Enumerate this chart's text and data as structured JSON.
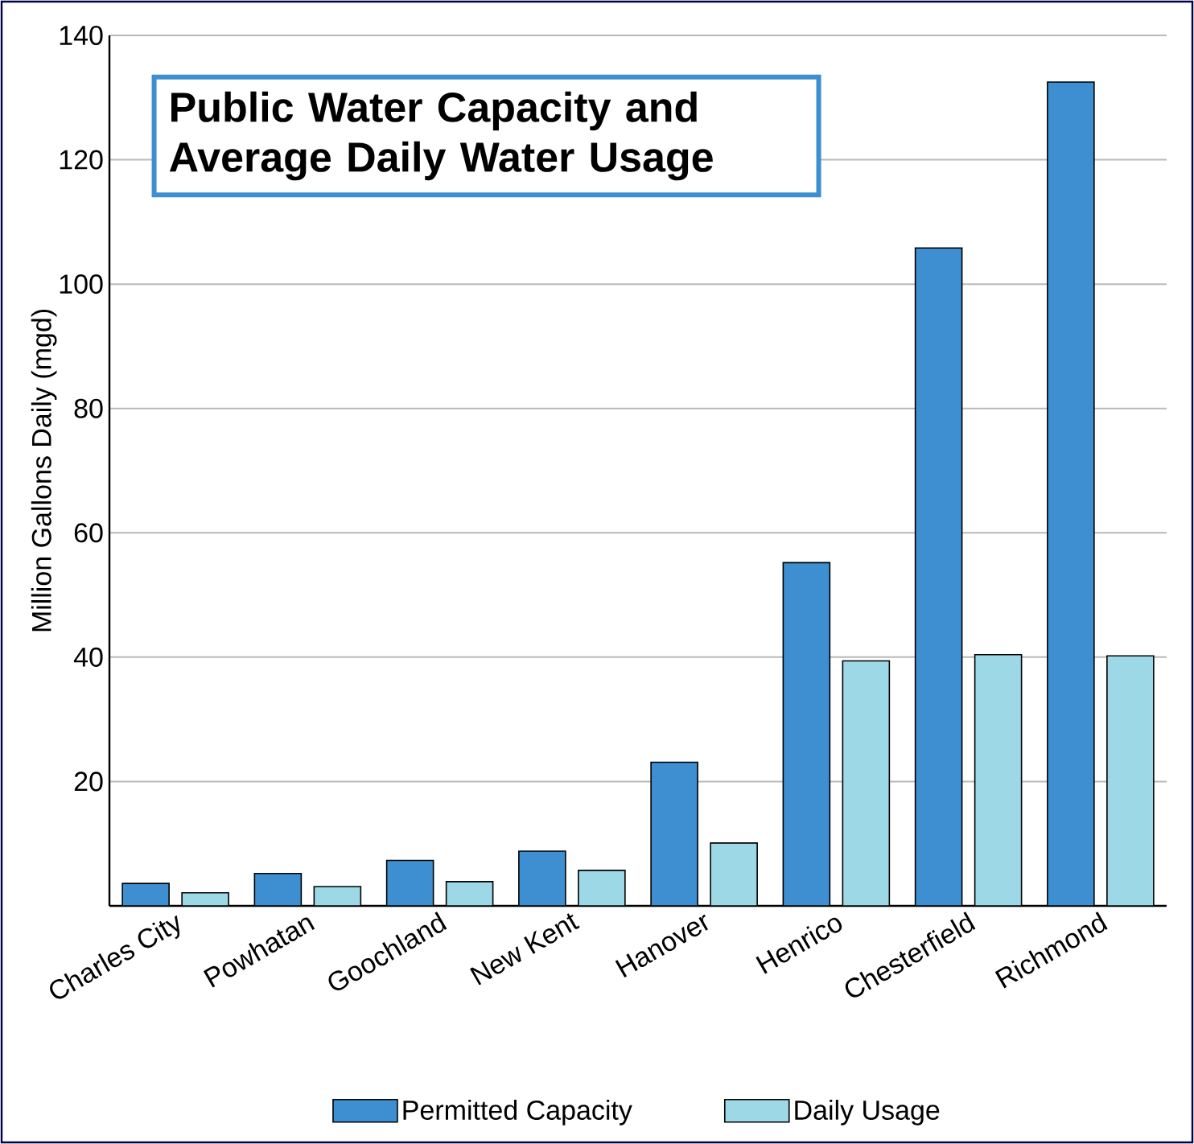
{
  "chart_data": {
    "type": "bar",
    "title": "Public Water Capacity  and Average Daily Water Usage",
    "ylabel": "Million Gallons Daily (mgd)",
    "categories": [
      "Charles City",
      "Powhatan",
      "Goochland",
      "New Kent",
      "Hanover",
      "Henrico",
      "Chesterfield",
      "Richmond"
    ],
    "series": [
      {
        "name": "Permitted Capacity",
        "color": "#3d8fd1",
        "values": [
          3.6,
          5.2,
          7.3,
          8.8,
          23.1,
          55.2,
          105.8,
          132.5
        ]
      },
      {
        "name": "Daily Usage",
        "color": "#9dd8e6",
        "values": [
          2.1,
          3.1,
          3.9,
          5.7,
          10.1,
          39.4,
          40.4,
          40.2
        ]
      }
    ],
    "ylim": [
      0,
      140
    ],
    "yticks": [
      20,
      40,
      60,
      80,
      100,
      120,
      140
    ],
    "grid": "y",
    "legend": "bottom"
  }
}
